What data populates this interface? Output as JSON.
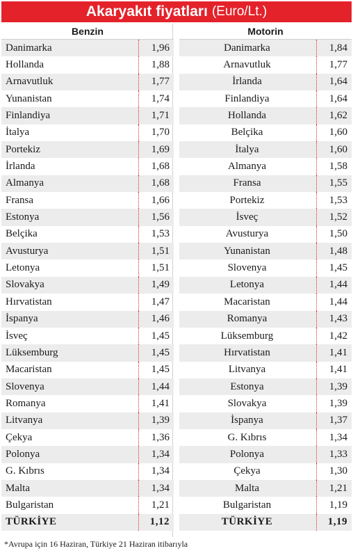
{
  "title": {
    "main": "Akaryakıt fiyatları",
    "unit": "(Euro/Lt.)"
  },
  "columns": {
    "left_header": "Benzin",
    "right_header": "Motorin"
  },
  "benzin": [
    {
      "country": "Danimarka",
      "price": "1,96"
    },
    {
      "country": "Hollanda",
      "price": "1,88"
    },
    {
      "country": "Arnavutluk",
      "price": "1,77"
    },
    {
      "country": "Yunanistan",
      "price": "1,74"
    },
    {
      "country": "Finlandiya",
      "price": "1,71"
    },
    {
      "country": "İtalya",
      "price": "1,70"
    },
    {
      "country": "Portekiz",
      "price": "1,69"
    },
    {
      "country": "İrlanda",
      "price": "1,68"
    },
    {
      "country": "Almanya",
      "price": "1,68"
    },
    {
      "country": "Fransa",
      "price": "1,66"
    },
    {
      "country": "Estonya",
      "price": "1,56"
    },
    {
      "country": "Belçika",
      "price": "1,53"
    },
    {
      "country": "Avusturya",
      "price": "1,51"
    },
    {
      "country": "Letonya",
      "price": "1,51"
    },
    {
      "country": "Slovakya",
      "price": "1,49"
    },
    {
      "country": "Hırvatistan",
      "price": "1,47"
    },
    {
      "country": "İspanya",
      "price": "1,46"
    },
    {
      "country": "İsveç",
      "price": "1,45"
    },
    {
      "country": "Lüksemburg",
      "price": "1,45"
    },
    {
      "country": "Macaristan",
      "price": "1,45"
    },
    {
      "country": "Slovenya",
      "price": "1,44"
    },
    {
      "country": "Romanya",
      "price": "1,41"
    },
    {
      "country": "Litvanya",
      "price": "1,39"
    },
    {
      "country": "Çekya",
      "price": "1,36"
    },
    {
      "country": "Polonya",
      "price": "1,34"
    },
    {
      "country": "G. Kıbrıs",
      "price": "1,34"
    },
    {
      "country": "Malta",
      "price": "1,34"
    },
    {
      "country": "Bulgaristan",
      "price": "1,21"
    },
    {
      "country": "TÜRKİYE",
      "price": "1,12"
    }
  ],
  "motorin": [
    {
      "country": "Danimarka",
      "price": "1,84"
    },
    {
      "country": "Arnavutluk",
      "price": "1,77"
    },
    {
      "country": "İrlanda",
      "price": "1,64"
    },
    {
      "country": "Finlandiya",
      "price": "1,64"
    },
    {
      "country": "Hollanda",
      "price": "1,62"
    },
    {
      "country": "Belçika",
      "price": "1,60"
    },
    {
      "country": "İtalya",
      "price": "1,60"
    },
    {
      "country": "Almanya",
      "price": "1,58"
    },
    {
      "country": "Fransa",
      "price": "1,55"
    },
    {
      "country": "Portekiz",
      "price": "1,53"
    },
    {
      "country": "İsveç",
      "price": "1,52"
    },
    {
      "country": "Avusturya",
      "price": "1,50"
    },
    {
      "country": "Yunanistan",
      "price": "1,48"
    },
    {
      "country": "Slovenya",
      "price": "1,45"
    },
    {
      "country": "Letonya",
      "price": "1,44"
    },
    {
      "country": "Macaristan",
      "price": "1,44"
    },
    {
      "country": "Romanya",
      "price": "1,43"
    },
    {
      "country": "Lüksemburg",
      "price": "1,42"
    },
    {
      "country": "Hırvatistan",
      "price": "1,41"
    },
    {
      "country": "Litvanya",
      "price": "1,41"
    },
    {
      "country": "Estonya",
      "price": "1,39"
    },
    {
      "country": "Slovakya",
      "price": "1,39"
    },
    {
      "country": "İspanya",
      "price": "1,37"
    },
    {
      "country": "G. Kıbrıs",
      "price": "1,34"
    },
    {
      "country": "Polonya",
      "price": "1,33"
    },
    {
      "country": "Çekya",
      "price": "1,30"
    },
    {
      "country": "Malta",
      "price": "1,21"
    },
    {
      "country": "Bulgaristan",
      "price": "1,19"
    },
    {
      "country": "TÜRKİYE",
      "price": "1,19"
    }
  ],
  "footnote": "*Avrupa için 16 Haziran, Türkiye 21 Haziran itibarıyla",
  "colors": {
    "accent": "#e4222a",
    "stripe": "#ececec"
  }
}
